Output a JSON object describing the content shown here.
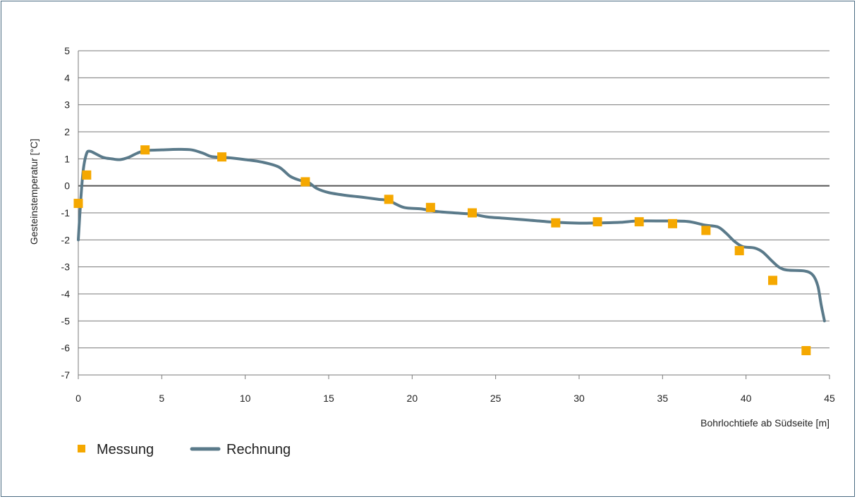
{
  "chart_data": {
    "type": "line",
    "title": "",
    "xlabel": "Bohrlochtiefe ab Südseite [m]",
    "ylabel": "Gesteinstemperatur  [°C]",
    "xlim": [
      0,
      45
    ],
    "ylim": [
      -7,
      5
    ],
    "x_ticks": [
      0,
      5,
      10,
      15,
      20,
      25,
      30,
      35,
      40,
      45
    ],
    "y_ticks": [
      5,
      4,
      3,
      2,
      1,
      0,
      -1,
      -2,
      -3,
      -4,
      -5,
      -6,
      -7
    ],
    "grid": "horizontal",
    "legend_position": "bottom-left",
    "series": [
      {
        "name": "Messung",
        "kind": "scatter",
        "color": "#f5a800",
        "points": [
          [
            0.0,
            -0.65
          ],
          [
            0.5,
            0.4
          ],
          [
            4.0,
            1.33
          ],
          [
            8.6,
            1.07
          ],
          [
            13.6,
            0.15
          ],
          [
            18.6,
            -0.5
          ],
          [
            21.1,
            -0.8
          ],
          [
            23.6,
            -1.0
          ],
          [
            28.6,
            -1.37
          ],
          [
            31.1,
            -1.33
          ],
          [
            33.6,
            -1.33
          ],
          [
            35.6,
            -1.4
          ],
          [
            37.6,
            -1.65
          ],
          [
            39.6,
            -2.4
          ],
          [
            41.6,
            -3.5
          ],
          [
            43.6,
            -6.1
          ]
        ]
      },
      {
        "name": "Rechnung",
        "kind": "line",
        "color": "#5a7a8a",
        "points": [
          [
            0.0,
            -2.0
          ],
          [
            0.15,
            -0.5
          ],
          [
            0.3,
            0.6
          ],
          [
            0.5,
            1.2
          ],
          [
            0.7,
            1.28
          ],
          [
            1.0,
            1.2
          ],
          [
            1.5,
            1.05
          ],
          [
            2.0,
            1.0
          ],
          [
            2.5,
            0.97
          ],
          [
            3.0,
            1.05
          ],
          [
            3.5,
            1.2
          ],
          [
            4.0,
            1.3
          ],
          [
            5.0,
            1.33
          ],
          [
            6.0,
            1.35
          ],
          [
            6.8,
            1.33
          ],
          [
            7.5,
            1.2
          ],
          [
            8.0,
            1.08
          ],
          [
            9.0,
            1.04
          ],
          [
            10.0,
            0.97
          ],
          [
            11.0,
            0.88
          ],
          [
            12.0,
            0.7
          ],
          [
            12.7,
            0.35
          ],
          [
            13.3,
            0.2
          ],
          [
            13.8,
            0.12
          ],
          [
            14.3,
            -0.1
          ],
          [
            15.0,
            -0.25
          ],
          [
            16.0,
            -0.35
          ],
          [
            17.0,
            -0.42
          ],
          [
            18.0,
            -0.5
          ],
          [
            18.6,
            -0.55
          ],
          [
            19.5,
            -0.8
          ],
          [
            20.5,
            -0.85
          ],
          [
            21.5,
            -0.95
          ],
          [
            22.5,
            -1.0
          ],
          [
            23.6,
            -1.05
          ],
          [
            24.5,
            -1.15
          ],
          [
            25.5,
            -1.2
          ],
          [
            27.0,
            -1.27
          ],
          [
            28.6,
            -1.35
          ],
          [
            30.0,
            -1.38
          ],
          [
            31.5,
            -1.37
          ],
          [
            32.5,
            -1.35
          ],
          [
            33.5,
            -1.3
          ],
          [
            35.0,
            -1.3
          ],
          [
            36.5,
            -1.32
          ],
          [
            37.5,
            -1.45
          ],
          [
            38.3,
            -1.52
          ],
          [
            38.8,
            -1.75
          ],
          [
            39.3,
            -2.05
          ],
          [
            39.8,
            -2.25
          ],
          [
            40.5,
            -2.3
          ],
          [
            41.0,
            -2.45
          ],
          [
            41.5,
            -2.75
          ],
          [
            42.0,
            -3.02
          ],
          [
            42.5,
            -3.12
          ],
          [
            43.5,
            -3.15
          ],
          [
            44.0,
            -3.3
          ],
          [
            44.3,
            -3.7
          ],
          [
            44.5,
            -4.4
          ],
          [
            44.7,
            -5.0
          ]
        ]
      }
    ]
  }
}
